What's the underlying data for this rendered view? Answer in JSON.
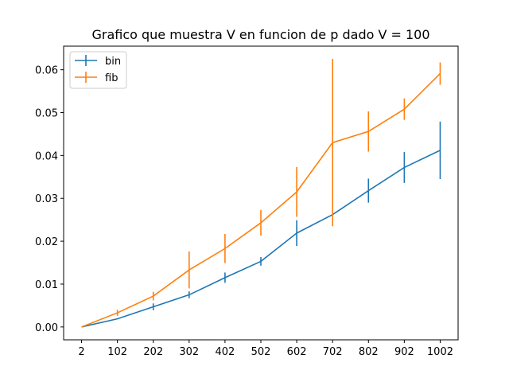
{
  "chart_data": {
    "type": "line",
    "title": "Grafico que muestra V en funcion de p dado V = 100",
    "xlabel": "",
    "ylabel": "",
    "categories": [
      "2",
      "102",
      "202",
      "302",
      "402",
      "502",
      "602",
      "702",
      "802",
      "902",
      "1002"
    ],
    "x": [
      2,
      102,
      202,
      302,
      402,
      502,
      602,
      702,
      802,
      902,
      1002
    ],
    "yticks": [
      "0.00",
      "0.01",
      "0.02",
      "0.03",
      "0.04",
      "0.05",
      "0.06"
    ],
    "ylim": [
      -0.003,
      0.0655
    ],
    "grid": false,
    "legend": "top-left",
    "series": [
      {
        "name": "bin",
        "color": "#1f77b4",
        "values": [
          0.0,
          0.0019,
          0.0047,
          0.0075,
          0.0115,
          0.0153,
          0.0219,
          0.0262,
          0.0318,
          0.0372,
          0.0412
        ],
        "errors": [
          0.0,
          0.0,
          0.0008,
          0.0008,
          0.0012,
          0.001,
          0.003,
          0.0,
          0.0028,
          0.0036,
          0.0067
        ]
      },
      {
        "name": "fib",
        "color": "#ff7f0e",
        "values": [
          0.0,
          0.0033,
          0.0072,
          0.0133,
          0.0183,
          0.0243,
          0.0315,
          0.043,
          0.0456,
          0.0508,
          0.0591
        ],
        "errors": [
          0.0,
          0.0007,
          0.001,
          0.0043,
          0.0034,
          0.003,
          0.0058,
          0.0195,
          0.0047,
          0.0025,
          0.0026
        ]
      }
    ]
  }
}
